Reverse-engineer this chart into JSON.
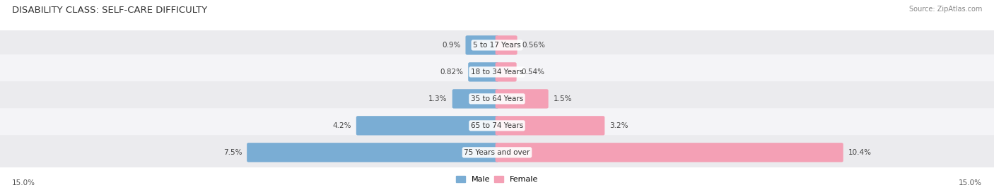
{
  "title": "DISABILITY CLASS: SELF-CARE DIFFICULTY",
  "source": "Source: ZipAtlas.com",
  "categories": [
    "5 to 17 Years",
    "18 to 34 Years",
    "35 to 64 Years",
    "65 to 74 Years",
    "75 Years and over"
  ],
  "male_values": [
    0.9,
    0.82,
    1.3,
    4.2,
    7.5
  ],
  "female_values": [
    0.56,
    0.54,
    1.5,
    3.2,
    10.4
  ],
  "male_labels": [
    "0.9%",
    "0.82%",
    "1.3%",
    "4.2%",
    "7.5%"
  ],
  "female_labels": [
    "0.56%",
    "0.54%",
    "1.5%",
    "3.2%",
    "10.4%"
  ],
  "male_color": "#7aadd4",
  "female_color": "#f4a0b5",
  "axis_max": 15.0,
  "axis_label_left": "15.0%",
  "axis_label_right": "15.0%",
  "background_color": "#ffffff",
  "row_colors": [
    "#ebebee",
    "#f4f4f7"
  ],
  "title_fontsize": 9.5,
  "bar_label_fontsize": 7.5,
  "category_fontsize": 7.5,
  "legend_fontsize": 8,
  "source_fontsize": 7
}
